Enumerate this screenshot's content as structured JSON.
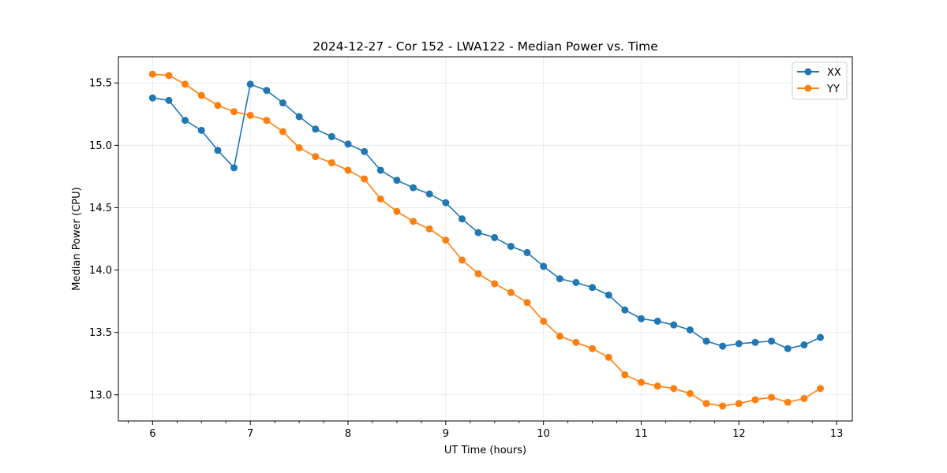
{
  "chart_data": {
    "type": "line",
    "title": "2024-12-27 - Cor 152 - LWA122 - Median Power vs. Time",
    "xlabel": "UT Time (hours)",
    "ylabel": "Median Power (CPU)",
    "xlim": [
      5.65,
      13.16
    ],
    "ylim": [
      12.79,
      15.71
    ],
    "xticks": [
      6,
      7,
      8,
      9,
      10,
      11,
      12,
      13
    ],
    "xtick_labels": [
      "6",
      "7",
      "8",
      "9",
      "10",
      "11",
      "12",
      "13"
    ],
    "xminor_step": 0.25,
    "yticks": [
      13.0,
      13.5,
      14.0,
      14.5,
      15.0,
      15.5
    ],
    "ytick_labels": [
      "13.0",
      "13.5",
      "14.0",
      "14.5",
      "15.0",
      "15.5"
    ],
    "grid": true,
    "legend_position": "top-right",
    "x": [
      6.0,
      6.167,
      6.333,
      6.5,
      6.667,
      6.833,
      7.0,
      7.167,
      7.333,
      7.5,
      7.667,
      7.833,
      8.0,
      8.167,
      8.333,
      8.5,
      8.667,
      8.833,
      9.0,
      9.167,
      9.333,
      9.5,
      9.667,
      9.833,
      10.0,
      10.167,
      10.333,
      10.5,
      10.667,
      10.833,
      11.0,
      11.167,
      11.333,
      11.5,
      11.667,
      11.833,
      12.0,
      12.167,
      12.333,
      12.5,
      12.667,
      12.833
    ],
    "series": [
      {
        "name": "XX",
        "color": "#1f77b4",
        "values": [
          15.38,
          15.36,
          15.2,
          15.12,
          14.96,
          14.82,
          15.49,
          15.44,
          15.34,
          15.23,
          15.13,
          15.07,
          15.01,
          14.95,
          14.8,
          14.72,
          14.66,
          14.61,
          14.54,
          14.41,
          14.3,
          14.26,
          14.19,
          14.14,
          14.03,
          13.93,
          13.9,
          13.86,
          13.8,
          13.68,
          13.61,
          13.59,
          13.56,
          13.52,
          13.43,
          13.39,
          13.41,
          13.42,
          13.43,
          13.37,
          13.4,
          13.46
        ]
      },
      {
        "name": "YY",
        "color": "#ff7f0e",
        "values": [
          15.57,
          15.56,
          15.49,
          15.4,
          15.32,
          15.27,
          15.24,
          15.2,
          15.11,
          14.98,
          14.91,
          14.86,
          14.8,
          14.73,
          14.57,
          14.47,
          14.39,
          14.33,
          14.24,
          14.08,
          13.97,
          13.89,
          13.82,
          13.74,
          13.59,
          13.47,
          13.42,
          13.37,
          13.3,
          13.16,
          13.1,
          13.07,
          13.05,
          13.01,
          12.93,
          12.91,
          12.93,
          12.96,
          12.98,
          12.94,
          12.97,
          13.05
        ]
      }
    ]
  }
}
